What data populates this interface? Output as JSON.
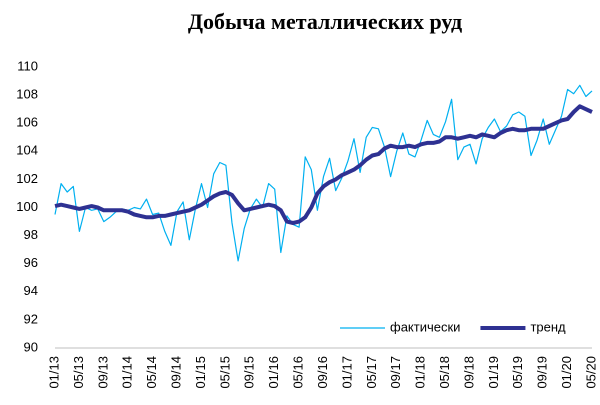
{
  "chart_data": {
    "type": "line",
    "title": "Добыча металлических руд",
    "categories": [
      "01/13",
      null,
      null,
      null,
      "05/13",
      null,
      null,
      null,
      "09/13",
      null,
      null,
      null,
      "01/14",
      null,
      null,
      null,
      "05/14",
      null,
      null,
      null,
      "09/14",
      null,
      null,
      null,
      "01/15",
      null,
      null,
      null,
      "05/15",
      null,
      null,
      null,
      "09/15",
      null,
      null,
      null,
      "01/16",
      null,
      null,
      null,
      "05/16",
      null,
      null,
      null,
      "09/16",
      null,
      null,
      null,
      "01/17",
      null,
      null,
      null,
      "05/17",
      null,
      null,
      null,
      "09/17",
      null,
      null,
      null,
      "01/18",
      null,
      null,
      null,
      "05/18",
      null,
      null,
      null,
      "09/18",
      null,
      null,
      null,
      "01/19",
      null,
      null,
      null,
      "05/19",
      null,
      null,
      null,
      "09/19",
      null,
      null,
      null,
      "01/20",
      null,
      null,
      null,
      "05/20"
    ],
    "series": [
      {
        "name": "фактически",
        "color": "#00b0f0",
        "values": [
          99.5,
          101.7,
          101.1,
          101.5,
          98.3,
          100.0,
          99.8,
          99.9,
          99.0,
          99.3,
          99.7,
          99.9,
          99.8,
          100.0,
          99.9,
          100.6,
          99.5,
          99.6,
          98.3,
          97.3,
          99.7,
          100.4,
          97.7,
          99.9,
          101.7,
          100.0,
          102.4,
          103.2,
          103.0,
          98.9,
          96.2,
          98.5,
          99.9,
          100.6,
          100.0,
          101.7,
          101.3,
          96.8,
          99.4,
          98.8,
          98.6,
          103.6,
          102.7,
          99.8,
          102.2,
          103.5,
          101.2,
          102.1,
          103.3,
          104.9,
          102.5,
          105.0,
          105.7,
          105.6,
          104.3,
          102.2,
          104.0,
          105.3,
          103.8,
          103.6,
          104.8,
          106.2,
          105.2,
          105.0,
          106.1,
          107.7,
          103.4,
          104.3,
          104.5,
          103.1,
          104.9,
          105.7,
          106.3,
          105.4,
          105.8,
          106.6,
          106.8,
          106.5,
          103.7,
          104.8,
          106.3,
          104.5,
          105.5,
          106.5,
          108.4,
          108.1,
          108.7,
          107.9,
          108.3
        ]
      },
      {
        "name": "тренд",
        "color": "#2e3192",
        "values": [
          100.1,
          100.2,
          100.1,
          100.0,
          99.9,
          100.0,
          100.1,
          100.0,
          99.8,
          99.8,
          99.8,
          99.8,
          99.7,
          99.5,
          99.4,
          99.3,
          99.3,
          99.4,
          99.4,
          99.5,
          99.6,
          99.7,
          99.8,
          100.0,
          100.2,
          100.5,
          100.8,
          101.0,
          101.1,
          100.9,
          100.3,
          99.8,
          99.9,
          100.0,
          100.1,
          100.2,
          100.1,
          99.8,
          99.0,
          98.9,
          99.0,
          99.3,
          100.0,
          101.0,
          101.5,
          101.8,
          102.0,
          102.3,
          102.5,
          102.7,
          103.0,
          103.4,
          103.7,
          103.8,
          104.2,
          104.4,
          104.3,
          104.3,
          104.4,
          104.3,
          104.5,
          104.6,
          104.6,
          104.7,
          105.0,
          105.0,
          104.9,
          105.0,
          105.1,
          105.0,
          105.2,
          105.1,
          105.0,
          105.3,
          105.5,
          105.6,
          105.5,
          105.5,
          105.6,
          105.6,
          105.6,
          105.8,
          106.0,
          106.2,
          106.3,
          106.8,
          107.2,
          107.0,
          106.8
        ]
      }
    ],
    "ylim": [
      90,
      110
    ],
    "yticks": [
      90,
      92,
      94,
      96,
      98,
      100,
      102,
      104,
      106,
      108,
      110
    ],
    "grid": false,
    "legend": "lower right"
  }
}
